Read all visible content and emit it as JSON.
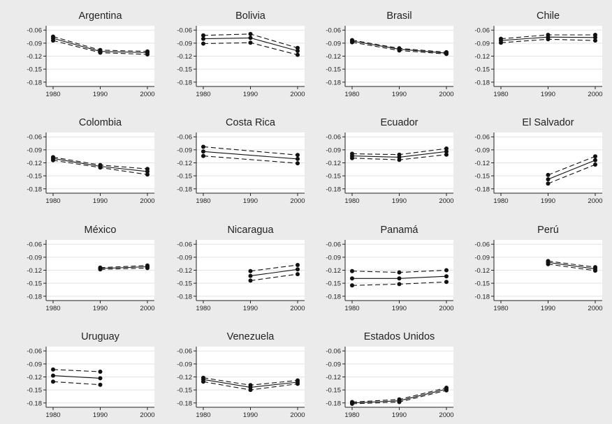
{
  "chart_data": [
    {
      "type": "line",
      "title": "Argentina",
      "x": [
        1980,
        1990,
        2000
      ],
      "xlim": [
        1980,
        2000
      ],
      "ylim": [
        -0.19,
        -0.05
      ],
      "yticks": [
        -0.06,
        -0.09,
        -0.12,
        -0.15,
        -0.18
      ],
      "grid": true,
      "series": [
        {
          "values": [
            -0.075,
            -0.106,
            -0.109
          ],
          "dash": true
        },
        {
          "values": [
            -0.079,
            -0.109,
            -0.112
          ],
          "dash": false
        },
        {
          "values": [
            -0.084,
            -0.112,
            -0.116
          ],
          "dash": true
        }
      ]
    },
    {
      "type": "line",
      "title": "Bolivia",
      "x": [
        1980,
        1990,
        2000
      ],
      "xlim": [
        1980,
        2000
      ],
      "ylim": [
        -0.19,
        -0.05
      ],
      "yticks": [
        -0.06,
        -0.09,
        -0.12,
        -0.15,
        -0.18
      ],
      "grid": true,
      "series": [
        {
          "values": [
            -0.072,
            -0.069,
            -0.101
          ],
          "dash": true
        },
        {
          "values": [
            -0.08,
            -0.078,
            -0.108
          ],
          "dash": false
        },
        {
          "values": [
            -0.091,
            -0.089,
            -0.117
          ],
          "dash": true
        }
      ]
    },
    {
      "type": "line",
      "title": "Brasil",
      "x": [
        1980,
        1990,
        2000
      ],
      "xlim": [
        1980,
        2000
      ],
      "ylim": [
        -0.19,
        -0.05
      ],
      "yticks": [
        -0.06,
        -0.09,
        -0.12,
        -0.15,
        -0.18
      ],
      "grid": true,
      "series": [
        {
          "values": [
            -0.083,
            -0.102,
            -0.111
          ],
          "dash": true
        },
        {
          "values": [
            -0.085,
            -0.104,
            -0.113
          ],
          "dash": false
        },
        {
          "values": [
            -0.088,
            -0.107,
            -0.115
          ],
          "dash": true
        }
      ]
    },
    {
      "type": "line",
      "title": "Chile",
      "x": [
        1980,
        1990,
        2000
      ],
      "xlim": [
        1980,
        2000
      ],
      "ylim": [
        -0.19,
        -0.05
      ],
      "yticks": [
        -0.06,
        -0.09,
        -0.12,
        -0.15,
        -0.18
      ],
      "grid": true,
      "series": [
        {
          "values": [
            -0.08,
            -0.071,
            -0.071
          ],
          "dash": true
        },
        {
          "values": [
            -0.084,
            -0.076,
            -0.077
          ],
          "dash": false
        },
        {
          "values": [
            -0.089,
            -0.081,
            -0.084
          ],
          "dash": true
        }
      ]
    },
    {
      "type": "line",
      "title": "Colombia",
      "x": [
        1980,
        1990,
        2000
      ],
      "xlim": [
        1980,
        2000
      ],
      "ylim": [
        -0.19,
        -0.05
      ],
      "yticks": [
        -0.06,
        -0.09,
        -0.12,
        -0.15,
        -0.18
      ],
      "grid": true,
      "series": [
        {
          "values": [
            -0.107,
            -0.125,
            -0.134
          ],
          "dash": true
        },
        {
          "values": [
            -0.11,
            -0.128,
            -0.14
          ],
          "dash": false
        },
        {
          "values": [
            -0.114,
            -0.131,
            -0.147
          ],
          "dash": true
        }
      ]
    },
    {
      "type": "line",
      "title": "Costa Rica",
      "x": [
        1980,
        1990,
        2000
      ],
      "xlim": [
        1980,
        2000
      ],
      "ylim": [
        -0.19,
        -0.05
      ],
      "yticks": [
        -0.06,
        -0.09,
        -0.12,
        -0.15,
        -0.18
      ],
      "grid": true,
      "series": [
        {
          "values": [
            -0.083,
            null,
            -0.102
          ],
          "dash": true
        },
        {
          "values": [
            -0.094,
            null,
            -0.111
          ],
          "dash": false
        },
        {
          "values": [
            -0.104,
            null,
            -0.121
          ],
          "dash": true
        }
      ]
    },
    {
      "type": "line",
      "title": "Ecuador",
      "x": [
        1980,
        1990,
        2000
      ],
      "xlim": [
        1980,
        2000
      ],
      "ylim": [
        -0.19,
        -0.05
      ],
      "yticks": [
        -0.06,
        -0.09,
        -0.12,
        -0.15,
        -0.18
      ],
      "grid": true,
      "series": [
        {
          "values": [
            -0.099,
            -0.101,
            -0.087
          ],
          "dash": true
        },
        {
          "values": [
            -0.104,
            -0.107,
            -0.094
          ],
          "dash": false
        },
        {
          "values": [
            -0.109,
            -0.113,
            -0.101
          ],
          "dash": true
        }
      ]
    },
    {
      "type": "line",
      "title": "El Salvador",
      "x": [
        1980,
        1990,
        2000
      ],
      "xlim": [
        1980,
        2000
      ],
      "ylim": [
        -0.19,
        -0.05
      ],
      "yticks": [
        -0.06,
        -0.09,
        -0.12,
        -0.15,
        -0.18
      ],
      "grid": true,
      "series": [
        {
          "values": [
            null,
            -0.148,
            -0.105
          ],
          "dash": true
        },
        {
          "values": [
            null,
            -0.158,
            -0.114
          ],
          "dash": false
        },
        {
          "values": [
            null,
            -0.168,
            -0.124
          ],
          "dash": true
        }
      ]
    },
    {
      "type": "line",
      "title": "México",
      "x": [
        1980,
        1990,
        2000
      ],
      "xlim": [
        1980,
        2000
      ],
      "ylim": [
        -0.19,
        -0.05
      ],
      "yticks": [
        -0.06,
        -0.09,
        -0.12,
        -0.15,
        -0.18
      ],
      "grid": true,
      "series": [
        {
          "values": [
            null,
            -0.114,
            -0.109
          ],
          "dash": true
        },
        {
          "values": [
            null,
            -0.116,
            -0.112
          ],
          "dash": false
        },
        {
          "values": [
            null,
            -0.118,
            -0.115
          ],
          "dash": true
        }
      ]
    },
    {
      "type": "line",
      "title": "Nicaragua",
      "x": [
        1980,
        1990,
        2000
      ],
      "xlim": [
        1980,
        2000
      ],
      "ylim": [
        -0.19,
        -0.05
      ],
      "yticks": [
        -0.06,
        -0.09,
        -0.12,
        -0.15,
        -0.18
      ],
      "grid": true,
      "series": [
        {
          "values": [
            null,
            -0.122,
            -0.108
          ],
          "dash": true
        },
        {
          "values": [
            null,
            -0.133,
            -0.118
          ],
          "dash": false
        },
        {
          "values": [
            null,
            -0.144,
            -0.129
          ],
          "dash": true
        }
      ]
    },
    {
      "type": "line",
      "title": "Panamá",
      "x": [
        1980,
        1990,
        2000
      ],
      "xlim": [
        1980,
        2000
      ],
      "ylim": [
        -0.19,
        -0.05
      ],
      "yticks": [
        -0.06,
        -0.09,
        -0.12,
        -0.15,
        -0.18
      ],
      "grid": true,
      "series": [
        {
          "values": [
            -0.122,
            -0.125,
            -0.12
          ],
          "dash": true
        },
        {
          "values": [
            -0.139,
            -0.139,
            -0.134
          ],
          "dash": false
        },
        {
          "values": [
            -0.155,
            -0.152,
            -0.147
          ],
          "dash": true
        }
      ]
    },
    {
      "type": "line",
      "title": "Perú",
      "x": [
        1980,
        1990,
        2000
      ],
      "xlim": [
        1980,
        2000
      ],
      "ylim": [
        -0.19,
        -0.05
      ],
      "yticks": [
        -0.06,
        -0.09,
        -0.12,
        -0.15,
        -0.18
      ],
      "grid": true,
      "series": [
        {
          "values": [
            null,
            -0.099,
            -0.113
          ],
          "dash": true
        },
        {
          "values": [
            null,
            -0.102,
            -0.117
          ],
          "dash": false
        },
        {
          "values": [
            null,
            -0.106,
            -0.121
          ],
          "dash": true
        }
      ]
    },
    {
      "type": "line",
      "title": "Uruguay",
      "x": [
        1980,
        1990,
        2000
      ],
      "xlim": [
        1980,
        2000
      ],
      "ylim": [
        -0.19,
        -0.05
      ],
      "yticks": [
        -0.06,
        -0.09,
        -0.12,
        -0.15,
        -0.18
      ],
      "grid": true,
      "series": [
        {
          "values": [
            -0.103,
            -0.108,
            null
          ],
          "dash": true
        },
        {
          "values": [
            -0.117,
            -0.123,
            null
          ],
          "dash": false
        },
        {
          "values": [
            -0.131,
            -0.138,
            null
          ],
          "dash": true
        }
      ]
    },
    {
      "type": "line",
      "title": "Venezuela",
      "x": [
        1980,
        1990,
        2000
      ],
      "xlim": [
        1980,
        2000
      ],
      "ylim": [
        -0.19,
        -0.05
      ],
      "yticks": [
        -0.06,
        -0.09,
        -0.12,
        -0.15,
        -0.18
      ],
      "grid": true,
      "series": [
        {
          "values": [
            -0.122,
            -0.139,
            -0.128
          ],
          "dash": true
        },
        {
          "values": [
            -0.126,
            -0.144,
            -0.132
          ],
          "dash": false
        },
        {
          "values": [
            -0.131,
            -0.15,
            -0.136
          ],
          "dash": true
        }
      ]
    },
    {
      "type": "line",
      "title": "Estados Unidos",
      "x": [
        1980,
        1990,
        2000
      ],
      "xlim": [
        1980,
        2000
      ],
      "ylim": [
        -0.19,
        -0.05
      ],
      "yticks": [
        -0.06,
        -0.09,
        -0.12,
        -0.15,
        -0.18
      ],
      "grid": true,
      "series": [
        {
          "values": [
            -0.178,
            -0.172,
            -0.145
          ],
          "dash": true
        },
        {
          "values": [
            -0.18,
            -0.175,
            -0.148
          ],
          "dash": false
        },
        {
          "values": [
            -0.182,
            -0.178,
            -0.151
          ],
          "dash": true
        }
      ]
    }
  ]
}
